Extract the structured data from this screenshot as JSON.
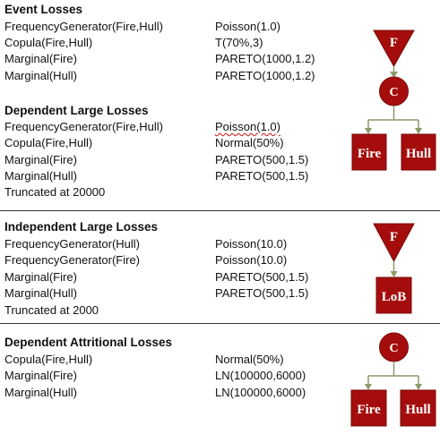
{
  "sections": [
    {
      "title": "Event Losses",
      "rows": [
        {
          "label": "FrequencyGenerator(Fire,Hull)",
          "value": "Poisson(1.0)"
        },
        {
          "label": "Copula(Fire,Hull)",
          "value": "T(70%,3)"
        },
        {
          "label": "Marginal(Fire)",
          "value": "PARETO(1000,1.2)"
        },
        {
          "label": "Marginal(Hull)",
          "value": "PARETO(1000,1.2)"
        }
      ],
      "diagram": {
        "triangle": "F",
        "circle": "C"
      }
    },
    {
      "title": "Dependent Large Losses",
      "rows": [
        {
          "label": "FrequencyGenerator(Fire,Hull)",
          "value": "Poisson(1.0)"
        },
        {
          "label": "Copula(Fire,Hull)",
          "value": "Normal(50%)"
        },
        {
          "label": "Marginal(Fire)",
          "value": "PARETO(500,1.5)"
        },
        {
          "label": "Marginal(Hull)",
          "value": "PARETO(500,1.5)"
        }
      ],
      "note": "Truncated at 20000",
      "diagram": {
        "box1": "Fire",
        "box2": "Hull"
      }
    },
    {
      "title": "Independent Large Losses",
      "rows": [
        {
          "label": "FrequencyGenerator(Hull)",
          "value": "Poisson(10.0)"
        },
        {
          "label": "FrequencyGenerator(Fire)",
          "value": "Poisson(10.0)"
        },
        {
          "label": "Marginal(Fire)",
          "value": "PARETO(500,1.5)"
        },
        {
          "label": "Marginal(Hull)",
          "value": "PARETO(500,1.5)"
        }
      ],
      "note": "Truncated at 2000",
      "diagram": {
        "triangle": "F",
        "box": "LoB"
      }
    },
    {
      "title": "Dependent Attritional Losses",
      "rows": [
        {
          "label": "Copula(Fire,Hull)",
          "value": "Normal(50%)"
        },
        {
          "label": "Marginal(Fire)",
          "value": "LN(100000,6000)"
        },
        {
          "label": "Marginal(Hull)",
          "value": "LN(100000,6000)"
        }
      ],
      "diagram": {
        "circle": "C",
        "box1": "Fire",
        "box2": "Hull"
      }
    }
  ],
  "colors": {
    "node_fill": "#a50d0d",
    "connector": "#8a9a6a"
  }
}
